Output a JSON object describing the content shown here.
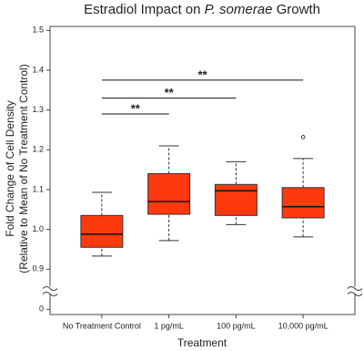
{
  "chart_data": {
    "type": "box",
    "title_parts": [
      {
        "text": "Estradiol Impact on "
      },
      {
        "text": "P. somerae",
        "italic": true
      },
      {
        "text": " Growth"
      }
    ],
    "x_label": "Treatment",
    "y_label": [
      "Fold Change of Cell Density",
      "(Relative to Mean of No Treatment Control)"
    ],
    "categories": [
      "No Treatment Control",
      "1 pg/mL",
      "100 pg/mL",
      "10,000 pg/mL"
    ],
    "boxes": [
      {
        "low": 0.933,
        "q1": 0.955,
        "median": 0.988,
        "q3": 1.035,
        "high": 1.093,
        "outliers": []
      },
      {
        "low": 0.972,
        "q1": 1.038,
        "median": 1.07,
        "q3": 1.14,
        "high": 1.21,
        "outliers": []
      },
      {
        "low": 1.012,
        "q1": 1.035,
        "median": 1.097,
        "q3": 1.113,
        "high": 1.17,
        "outliers": []
      },
      {
        "low": 0.981,
        "q1": 1.029,
        "median": 1.057,
        "q3": 1.105,
        "high": 1.178,
        "outliers": [
          1.232
        ]
      }
    ],
    "color": "#fc3a0e",
    "ylim": [
      -0.02,
      1.51
    ],
    "axis_break": [
      0.05,
      0.88
    ],
    "yticks": [
      0,
      0.9,
      {
        "value": 1,
        "label": "1.0"
      },
      1.1,
      1.2,
      1.3,
      1.4,
      1.5
    ],
    "significance": [
      {
        "from": 0,
        "to": 1,
        "y": 1.29,
        "label": "**"
      },
      {
        "from": 0,
        "to": 2,
        "y": 1.33,
        "label": "**"
      },
      {
        "from": 0,
        "to": 3,
        "y": 1.375,
        "label": "**"
      }
    ]
  }
}
